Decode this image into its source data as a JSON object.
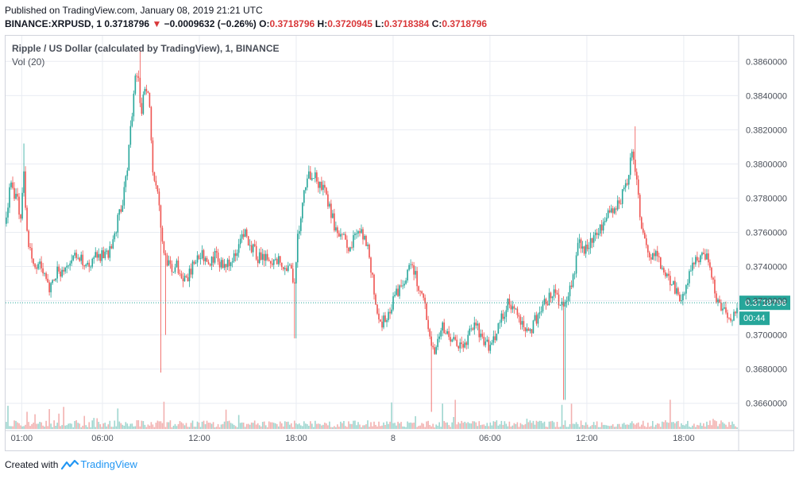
{
  "header": {
    "published": "Published on TradingView.com, January 08, 2019 21:21 UTC",
    "symbol_prefix": "BINANCE:XRPUSD, 1",
    "last": "0.3718796",
    "arrow": "▼",
    "change": "−0.0009632 (−0.26%)",
    "o_label": "O:",
    "o_value": "0.3718796",
    "h_label": "H:",
    "h_value": "0.3720945",
    "l_label": "L:",
    "l_value": "0.3718384",
    "c_label": "C:",
    "c_value": "0.3718796"
  },
  "legend": {
    "title": "Ripple / US Dollar (calculated by TradingView), 1, BINANCE",
    "volume": "Vol (20)"
  },
  "footer": {
    "created_with": "Created with",
    "brand": "TradingView"
  },
  "colors": {
    "up": "#26a69a",
    "down": "#ef5350",
    "grid": "#e9ecf2",
    "axis_text": "#4a4f59",
    "last_price_bg": "#26a69a",
    "last_price_line": "#26a69a"
  },
  "chart_data": {
    "type": "candlestick",
    "symbol": "BINANCE:XRPUSD",
    "interval": "1",
    "ylim": [
      0.3645,
      0.3875
    ],
    "y_ticks": [
      "0.3660000",
      "0.3680000",
      "0.3700000",
      "0.3720000",
      "0.3740000",
      "0.3760000",
      "0.3780000",
      "0.3800000",
      "0.3820000",
      "0.3840000",
      "0.3860000"
    ],
    "x_ticks": [
      "01:00",
      "06:00",
      "12:00",
      "18:00",
      "8",
      "06:00",
      "12:00",
      "18:00"
    ],
    "x_tick_times": [
      1,
      6,
      12,
      18,
      24,
      30,
      36,
      42
    ],
    "x_range_hours": [
      0,
      45.35
    ],
    "last_price": "0.3718796",
    "countdown": "00:44",
    "price_path": [
      [
        0.0,
        0.3765
      ],
      [
        0.3,
        0.3788
      ],
      [
        0.7,
        0.3778
      ],
      [
        1.0,
        0.377
      ],
      [
        1.1,
        0.38
      ],
      [
        1.3,
        0.376
      ],
      [
        1.6,
        0.3745
      ],
      [
        2.0,
        0.3742
      ],
      [
        2.4,
        0.3735
      ],
      [
        2.7,
        0.3728
      ],
      [
        3.0,
        0.3735
      ],
      [
        3.5,
        0.3738
      ],
      [
        4.0,
        0.3744
      ],
      [
        4.5,
        0.3748
      ],
      [
        5.0,
        0.374
      ],
      [
        5.5,
        0.3745
      ],
      [
        6.0,
        0.3748
      ],
      [
        6.4,
        0.3746
      ],
      [
        6.8,
        0.3762
      ],
      [
        7.2,
        0.3775
      ],
      [
        7.5,
        0.3795
      ],
      [
        7.8,
        0.3825
      ],
      [
        8.0,
        0.3848
      ],
      [
        8.2,
        0.3855
      ],
      [
        8.4,
        0.383
      ],
      [
        8.6,
        0.3845
      ],
      [
        8.9,
        0.3838
      ],
      [
        9.1,
        0.38
      ],
      [
        9.3,
        0.379
      ],
      [
        9.5,
        0.378
      ],
      [
        9.7,
        0.3755
      ],
      [
        9.9,
        0.3745
      ],
      [
        10.2,
        0.3738
      ],
      [
        10.6,
        0.3742
      ],
      [
        11.0,
        0.373
      ],
      [
        11.4,
        0.3735
      ],
      [
        11.8,
        0.3745
      ],
      [
        12.2,
        0.3748
      ],
      [
        12.6,
        0.3742
      ],
      [
        13.0,
        0.3746
      ],
      [
        13.5,
        0.374
      ],
      [
        14.0,
        0.3742
      ],
      [
        14.4,
        0.3748
      ],
      [
        14.8,
        0.376
      ],
      [
        15.2,
        0.3752
      ],
      [
        15.6,
        0.3745
      ],
      [
        16.0,
        0.3744
      ],
      [
        16.5,
        0.3742
      ],
      [
        17.0,
        0.3743
      ],
      [
        17.5,
        0.374
      ],
      [
        17.9,
        0.3732
      ],
      [
        18.1,
        0.3758
      ],
      [
        18.4,
        0.3778
      ],
      [
        18.8,
        0.3795
      ],
      [
        19.2,
        0.3792
      ],
      [
        19.6,
        0.3785
      ],
      [
        20.0,
        0.3778
      ],
      [
        20.4,
        0.3762
      ],
      [
        20.8,
        0.3758
      ],
      [
        21.2,
        0.3752
      ],
      [
        21.6,
        0.3756
      ],
      [
        22.0,
        0.376
      ],
      [
        22.4,
        0.3752
      ],
      [
        22.7,
        0.3735
      ],
      [
        23.0,
        0.3712
      ],
      [
        23.3,
        0.3705
      ],
      [
        23.6,
        0.3712
      ],
      [
        24.0,
        0.372
      ],
      [
        24.4,
        0.3728
      ],
      [
        24.8,
        0.3735
      ],
      [
        25.1,
        0.374
      ],
      [
        25.4,
        0.3735
      ],
      [
        25.7,
        0.3725
      ],
      [
        26.0,
        0.3715
      ],
      [
        26.3,
        0.37
      ],
      [
        26.5,
        0.369
      ],
      [
        26.8,
        0.37
      ],
      [
        27.1,
        0.3705
      ],
      [
        27.5,
        0.37
      ],
      [
        27.9,
        0.3695
      ],
      [
        28.3,
        0.369
      ],
      [
        28.7,
        0.37
      ],
      [
        29.1,
        0.3705
      ],
      [
        29.5,
        0.3698
      ],
      [
        30.0,
        0.3692
      ],
      [
        30.4,
        0.37
      ],
      [
        30.8,
        0.3712
      ],
      [
        31.2,
        0.372
      ],
      [
        31.6,
        0.3712
      ],
      [
        32.0,
        0.3706
      ],
      [
        32.4,
        0.3702
      ],
      [
        32.8,
        0.3708
      ],
      [
        33.2,
        0.3715
      ],
      [
        33.6,
        0.372
      ],
      [
        34.0,
        0.3725
      ],
      [
        34.4,
        0.3718
      ],
      [
        34.8,
        0.3722
      ],
      [
        35.2,
        0.3735
      ],
      [
        35.5,
        0.3755
      ],
      [
        35.8,
        0.3748
      ],
      [
        36.2,
        0.3755
      ],
      [
        36.6,
        0.3758
      ],
      [
        37.0,
        0.3765
      ],
      [
        37.3,
        0.3775
      ],
      [
        37.7,
        0.377
      ],
      [
        38.1,
        0.378
      ],
      [
        38.5,
        0.379
      ],
      [
        38.8,
        0.3805
      ],
      [
        39.0,
        0.3795
      ],
      [
        39.3,
        0.377
      ],
      [
        39.6,
        0.3755
      ],
      [
        39.9,
        0.3748
      ],
      [
        40.3,
        0.3745
      ],
      [
        40.7,
        0.374
      ],
      [
        41.0,
        0.3735
      ],
      [
        41.4,
        0.3728
      ],
      [
        41.8,
        0.3722
      ],
      [
        42.2,
        0.373
      ],
      [
        42.6,
        0.374
      ],
      [
        43.0,
        0.3745
      ],
      [
        43.4,
        0.3748
      ],
      [
        43.7,
        0.3735
      ],
      [
        44.0,
        0.372
      ],
      [
        44.4,
        0.3715
      ],
      [
        44.8,
        0.371
      ],
      [
        45.0,
        0.3708
      ],
      [
        45.3,
        0.3719
      ]
    ],
    "spikes": [
      {
        "t": 1.1,
        "high": 0.3812
      },
      {
        "t": 8.3,
        "high": 0.3868
      },
      {
        "t": 9.6,
        "low": 0.3678
      },
      {
        "t": 9.9,
        "low": 0.37
      },
      {
        "t": 17.95,
        "low": 0.3698
      },
      {
        "t": 26.4,
        "low": 0.3655
      },
      {
        "t": 34.6,
        "low": 0.3662
      },
      {
        "t": 39.0,
        "high": 0.3822
      }
    ]
  }
}
